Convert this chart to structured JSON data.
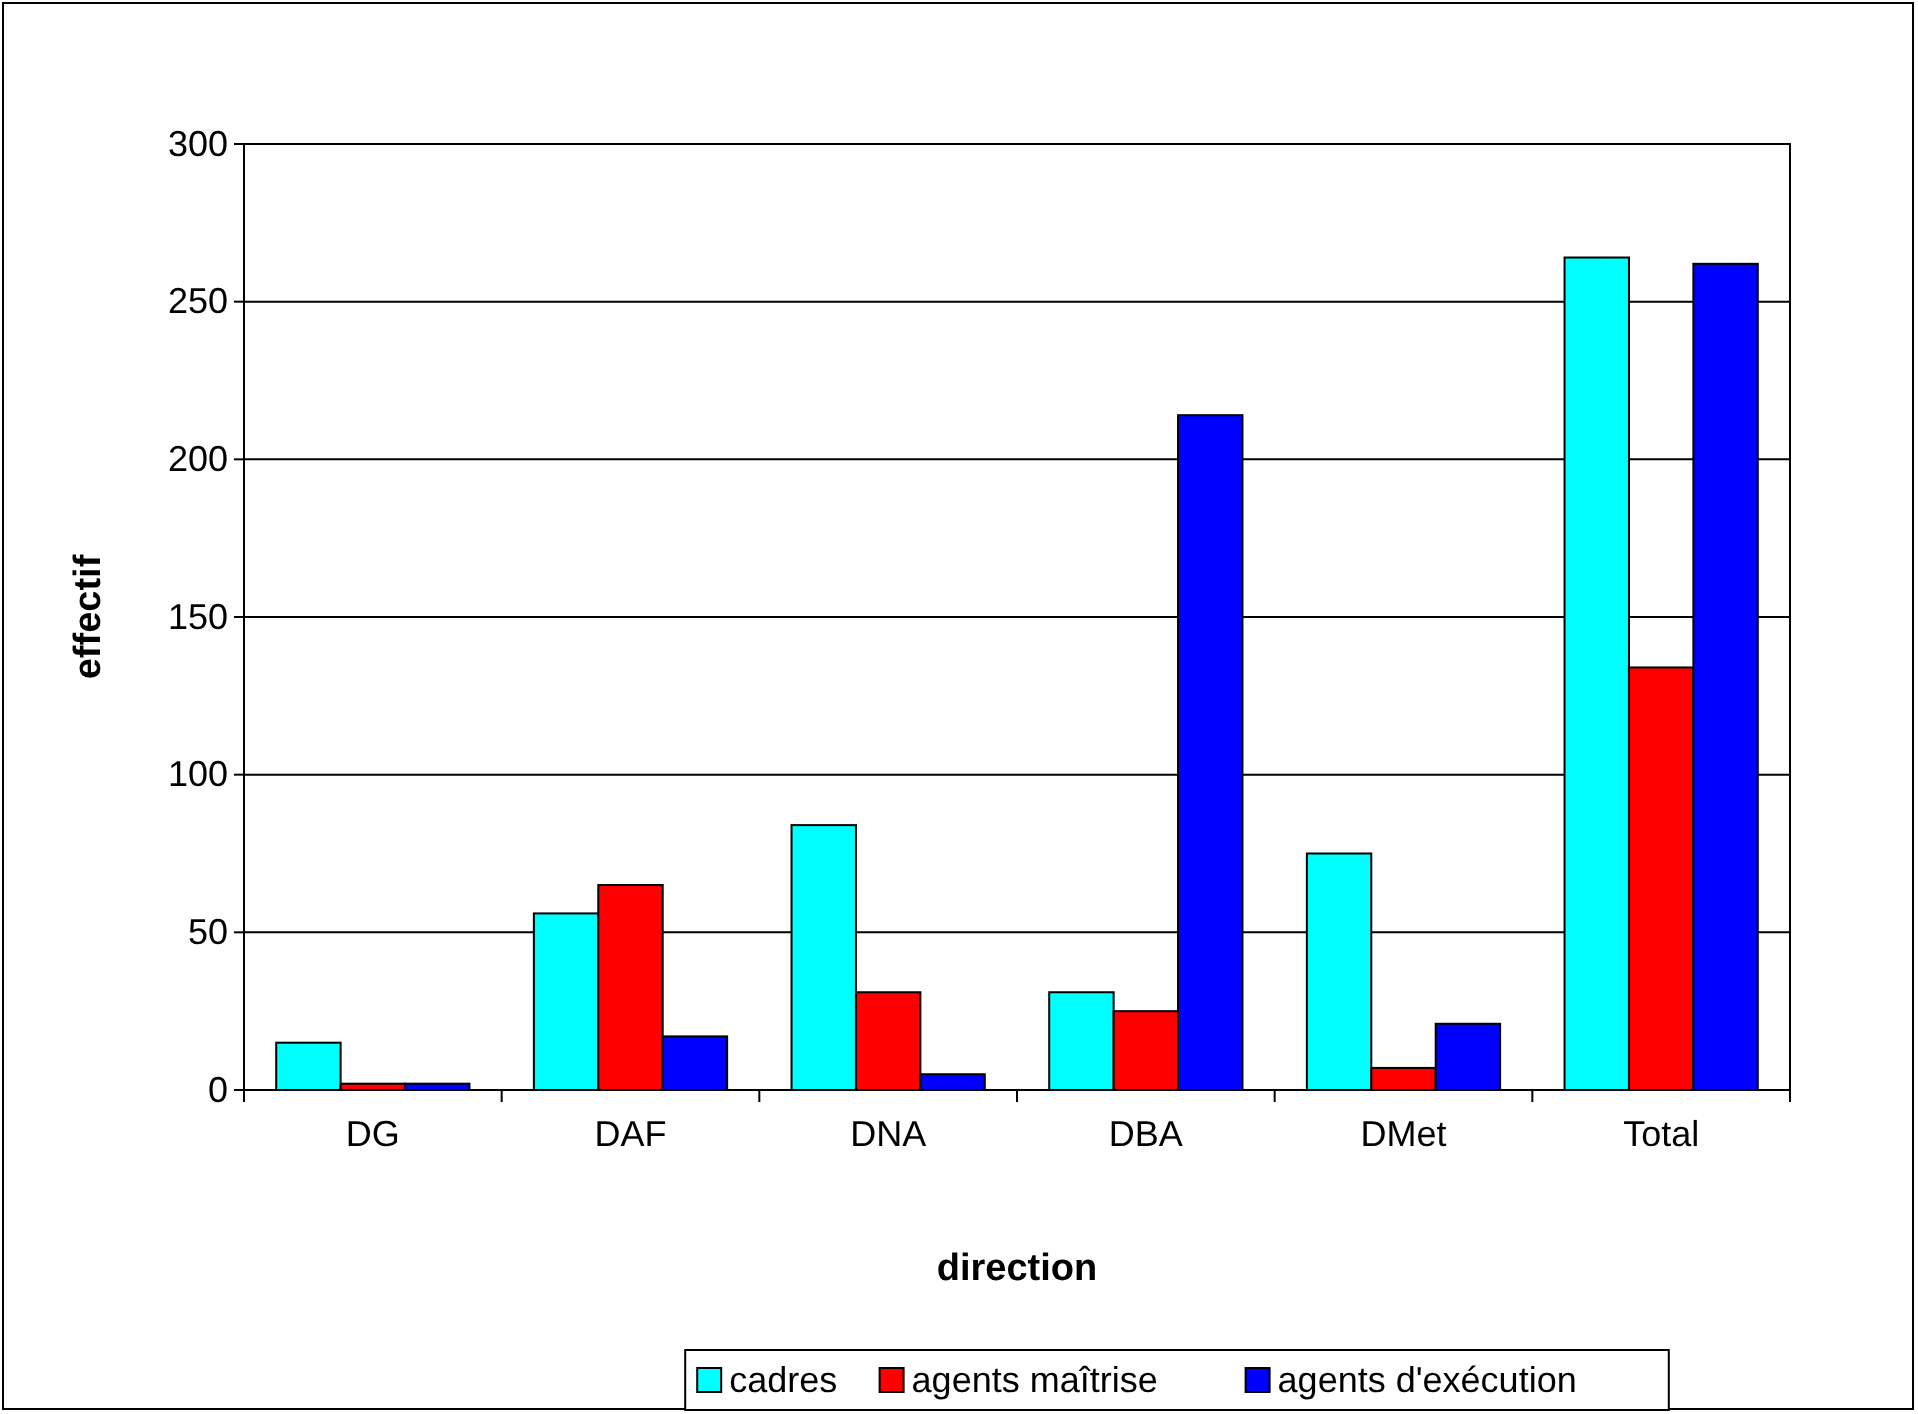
{
  "chart_data": {
    "type": "bar",
    "xlabel": "direction",
    "ylabel": "effectif",
    "categories": [
      "DG",
      "DAF",
      "DNA",
      "DBA",
      "DMet",
      "Total"
    ],
    "series": [
      {
        "name": "cadres",
        "color": "#00ffff",
        "values": [
          15,
          56,
          84,
          31,
          75,
          264
        ]
      },
      {
        "name": "agents maîtrise",
        "color": "#ff0000",
        "values": [
          2,
          65,
          31,
          25,
          7,
          134
        ]
      },
      {
        "name": "agents d'exécution",
        "color": "#0000ff",
        "values": [
          2,
          17,
          5,
          214,
          21,
          262
        ]
      }
    ],
    "ylim": [
      0,
      300
    ],
    "yticks": [
      0,
      50,
      100,
      150,
      200,
      250,
      300
    ],
    "grid": "y",
    "legend": "bottom"
  }
}
